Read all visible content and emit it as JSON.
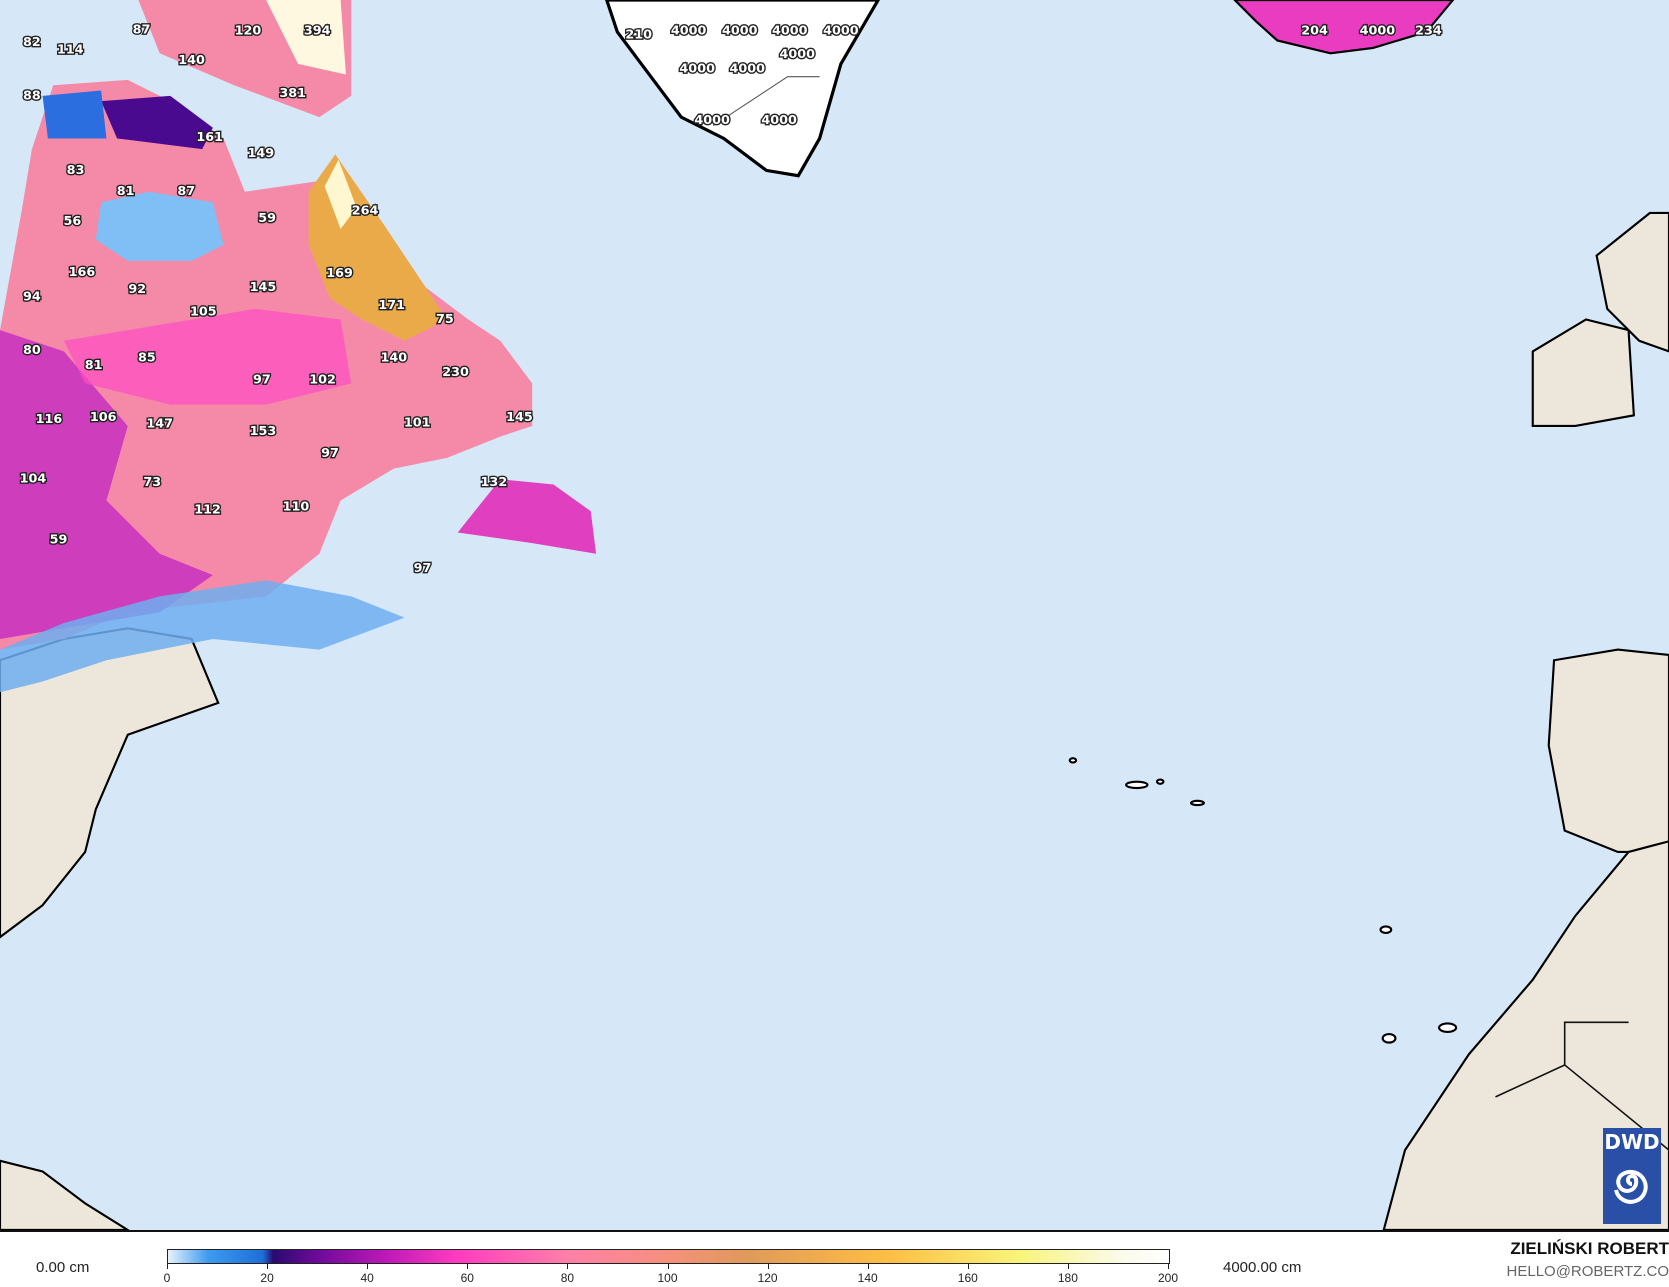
{
  "map": {
    "colors": {
      "ocean": "#d6e7f8",
      "land": "#ede6da",
      "coast": "#000000",
      "border": "#555555"
    },
    "labels": [
      "82",
      "114",
      "87",
      "120",
      "394",
      "140",
      "381",
      "88",
      "161",
      "149",
      "83",
      "81",
      "87",
      "56",
      "59",
      "264",
      "166",
      "92",
      "145",
      "169",
      "94",
      "105",
      "171",
      "75",
      "80",
      "81",
      "85",
      "97",
      "102",
      "140",
      "230",
      "116",
      "106",
      "147",
      "153",
      "101",
      "145",
      "97",
      "104",
      "73",
      "132",
      "112",
      "110",
      "59",
      "97",
      "210",
      "4000",
      "4000",
      "4000",
      "4000",
      "4000",
      "4000",
      "4000",
      "4000",
      "4000",
      "204",
      "4000",
      "234"
    ]
  },
  "legend": {
    "min_label": "0.00 cm",
    "max_label": "4000.00 cm",
    "ticks": [
      "0",
      "20",
      "40",
      "60",
      "80",
      "100",
      "120",
      "140",
      "160",
      "180",
      "200"
    ],
    "colors": [
      "#e8f2fc",
      "#3d9bf0",
      "#2a0a6e",
      "#c01ab8",
      "#ff3cc0",
      "#f5907c",
      "#ffbe44",
      "#f8f47a",
      "#ffffff"
    ]
  },
  "credit": {
    "author": "ZIELIŃSKI ROBERT",
    "email": "HELLO@ROBERTZ.CO"
  },
  "logo": {
    "text": "DWD",
    "icon": "spiral-icon"
  }
}
